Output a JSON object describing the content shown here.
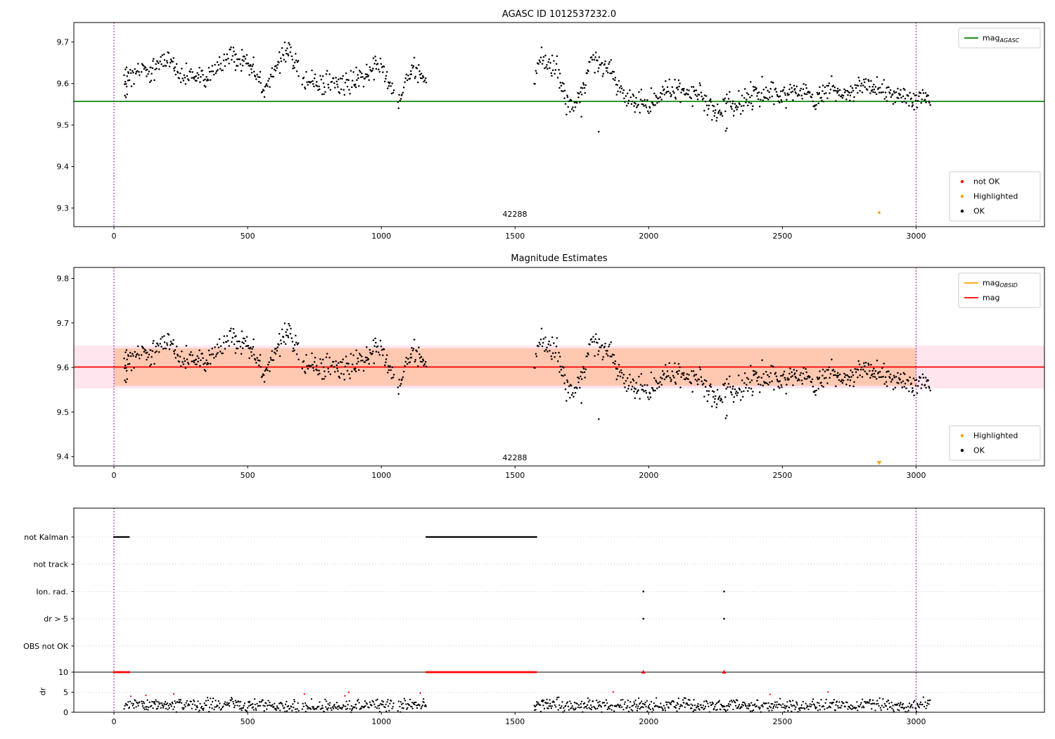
{
  "colors": {
    "black": "#000000",
    "red": "#ff0000",
    "orange": "#ffa500",
    "green": "#007f00",
    "purple": "#8e008e",
    "grid": "#bdbdbd",
    "band_outer": "rgba(255,80,140,0.15)",
    "band_inner": "rgba(255,140,50,0.32)",
    "legend_border": "#cccccc"
  },
  "chart_data": [
    {
      "type": "scatter",
      "title": "AGASC ID 1012537232.0",
      "xlim": [
        -150,
        3480
      ],
      "ylim": [
        9.2553,
        9.747
      ],
      "xticks": [
        0,
        500,
        1000,
        1500,
        2000,
        2500,
        3000
      ],
      "yticks": [
        9.7,
        9.6,
        9.5,
        9.4,
        9.3
      ],
      "hlines": [
        {
          "name": "mag-agasc",
          "y": 9.557,
          "color": "green"
        }
      ],
      "vlines": [
        0,
        3000
      ],
      "annotation": {
        "text": "42288",
        "x": 1500
      },
      "legend_upper": [
        {
          "type": "line",
          "color": "green",
          "text": "mag",
          "sub": "AGASC"
        }
      ],
      "legend_lower": [
        {
          "type": "dot",
          "color": "red",
          "text": "not OK"
        },
        {
          "type": "dot",
          "color": "orange",
          "text": "Highlighted"
        },
        {
          "type": "dot",
          "color": "black",
          "text": "OK"
        }
      ],
      "highlighted": [
        {
          "x": 2862,
          "y": 9.289,
          "marker": "dot"
        }
      ],
      "series": {
        "segments": [
          [
            38,
            96
          ],
          [
            103,
            692
          ],
          [
            704,
            1048
          ],
          [
            1062,
            1168
          ],
          [
            1572,
            3055
          ]
        ],
        "step": 2.6,
        "jitter": 0.013,
        "profile": [
          [
            38,
            9.598
          ],
          [
            55,
            9.612
          ],
          [
            75,
            9.628
          ],
          [
            100,
            9.63
          ],
          [
            140,
            9.632
          ],
          [
            175,
            9.645
          ],
          [
            205,
            9.648
          ],
          [
            235,
            9.625
          ],
          [
            265,
            9.615
          ],
          [
            300,
            9.62
          ],
          [
            340,
            9.616
          ],
          [
            380,
            9.627
          ],
          [
            415,
            9.655
          ],
          [
            435,
            9.678
          ],
          [
            455,
            9.663
          ],
          [
            480,
            9.648
          ],
          [
            510,
            9.64
          ],
          [
            540,
            9.612
          ],
          [
            562,
            9.588
          ],
          [
            585,
            9.605
          ],
          [
            610,
            9.65
          ],
          [
            635,
            9.672
          ],
          [
            655,
            9.683
          ],
          [
            672,
            9.662
          ],
          [
            692,
            9.625
          ],
          [
            704,
            9.6
          ],
          [
            735,
            9.612
          ],
          [
            770,
            9.6
          ],
          [
            805,
            9.598
          ],
          [
            840,
            9.594
          ],
          [
            875,
            9.6
          ],
          [
            905,
            9.612
          ],
          [
            935,
            9.622
          ],
          [
            965,
            9.638
          ],
          [
            985,
            9.652
          ],
          [
            1005,
            9.635
          ],
          [
            1025,
            9.607
          ],
          [
            1045,
            9.578
          ],
          [
            1062,
            9.565
          ],
          [
            1080,
            9.582
          ],
          [
            1100,
            9.618
          ],
          [
            1120,
            9.632
          ],
          [
            1145,
            9.616
          ],
          [
            1168,
            9.61
          ],
          [
            1572,
            9.612
          ],
          [
            1592,
            9.645
          ],
          [
            1612,
            9.658
          ],
          [
            1632,
            9.642
          ],
          [
            1652,
            9.648
          ],
          [
            1672,
            9.6
          ],
          [
            1692,
            9.562
          ],
          [
            1712,
            9.545
          ],
          [
            1732,
            9.552
          ],
          [
            1752,
            9.582
          ],
          [
            1772,
            9.622
          ],
          [
            1792,
            9.664
          ],
          [
            1812,
            9.652
          ],
          [
            1832,
            9.642
          ],
          [
            1852,
            9.64
          ],
          [
            1872,
            9.614
          ],
          [
            1892,
            9.585
          ],
          [
            1912,
            9.575
          ],
          [
            1932,
            9.565
          ],
          [
            1952,
            9.556
          ],
          [
            1972,
            9.56
          ],
          [
            1992,
            9.553
          ],
          [
            2012,
            9.558
          ],
          [
            2032,
            9.565
          ],
          [
            2052,
            9.58
          ],
          [
            2072,
            9.59
          ],
          [
            2092,
            9.585
          ],
          [
            2112,
            9.59
          ],
          [
            2132,
            9.58
          ],
          [
            2152,
            9.57
          ],
          [
            2172,
            9.576
          ],
          [
            2192,
            9.565
          ],
          [
            2212,
            9.55
          ],
          [
            2232,
            9.54
          ],
          [
            2252,
            9.522
          ],
          [
            2272,
            9.53
          ],
          [
            2292,
            9.55
          ],
          [
            2312,
            9.56
          ],
          [
            2332,
            9.545
          ],
          [
            2352,
            9.552
          ],
          [
            2372,
            9.565
          ],
          [
            2392,
            9.575
          ],
          [
            2412,
            9.57
          ],
          [
            2432,
            9.576
          ],
          [
            2452,
            9.582
          ],
          [
            2472,
            9.576
          ],
          [
            2492,
            9.57
          ],
          [
            2512,
            9.576
          ],
          [
            2532,
            9.582
          ],
          [
            2552,
            9.576
          ],
          [
            2572,
            9.582
          ],
          [
            2592,
            9.576
          ],
          [
            2612,
            9.562
          ],
          [
            2632,
            9.566
          ],
          [
            2652,
            9.586
          ],
          [
            2672,
            9.596
          ],
          [
            2692,
            9.59
          ],
          [
            2712,
            9.585
          ],
          [
            2732,
            9.576
          ],
          [
            2752,
            9.57
          ],
          [
            2772,
            9.582
          ],
          [
            2792,
            9.592
          ],
          [
            2812,
            9.6
          ],
          [
            2832,
            9.59
          ],
          [
            2852,
            9.582
          ],
          [
            2872,
            9.586
          ],
          [
            2892,
            9.576
          ],
          [
            2912,
            9.57
          ],
          [
            2932,
            9.576
          ],
          [
            2952,
            9.57
          ],
          [
            2972,
            9.565
          ],
          [
            2992,
            9.56
          ],
          [
            3012,
            9.566
          ],
          [
            3032,
            9.57
          ],
          [
            3055,
            9.565
          ]
        ],
        "extra_points": [
          [
            41,
            9.571
          ],
          [
            45,
            9.567
          ],
          [
            49,
            9.574
          ],
          [
            43,
            9.634
          ],
          [
            47,
            9.639
          ],
          [
            53,
            9.628
          ],
          [
            1813,
            9.484
          ],
          [
            2288,
            9.486
          ],
          [
            2292,
            9.492
          ]
        ]
      }
    },
    {
      "type": "scatter",
      "title": "Magnitude Estimates",
      "xlim": [
        -150,
        3480
      ],
      "ylim": [
        9.379,
        9.8245
      ],
      "xticks": [
        0,
        500,
        1000,
        1500,
        2000,
        2500,
        3000
      ],
      "yticks": [
        9.8,
        9.7,
        9.6,
        9.5,
        9.4
      ],
      "hlines": [
        {
          "name": "mag",
          "y": 9.601,
          "color": "red"
        }
      ],
      "bands": [
        {
          "x0": -150,
          "x1": 3480,
          "y0": 9.553,
          "y1": 9.649,
          "color": "band_outer"
        },
        {
          "x0": 0,
          "x1": 3000,
          "y0": 9.559,
          "y1": 9.643,
          "color": "band_inner"
        }
      ],
      "vlines": [
        0,
        3000
      ],
      "annotation": {
        "text": "42288",
        "x": 1500
      },
      "legend_upper": [
        {
          "type": "line",
          "color": "orange",
          "text": "mag",
          "sub": "OBSID"
        },
        {
          "type": "line",
          "color": "red",
          "text": "mag",
          "sub": ""
        }
      ],
      "legend_lower": [
        {
          "type": "dot",
          "color": "orange",
          "text": "Highlighted"
        },
        {
          "type": "dot",
          "color": "black",
          "text": "OK"
        }
      ],
      "highlighted": [
        {
          "x": 2862,
          "y": 9.386,
          "marker": "triangle-down"
        }
      ]
    },
    {
      "type": "flags",
      "categories": [
        "not Kalman",
        "not track",
        "Ion. rad.",
        "dr > 5",
        "OBS not OK"
      ],
      "dr_ticks": [
        10,
        5,
        0
      ],
      "ylabel": "dr",
      "xlim": [
        -150,
        3480
      ],
      "xticks": [
        0,
        500,
        1000,
        1500,
        2000,
        2500,
        3000
      ],
      "vlines": [
        0,
        3000
      ],
      "clip_line_dr": 10,
      "flag_runs": {
        "not_kalman": [
          [
            0,
            57
          ],
          [
            1168,
            1580
          ]
        ]
      },
      "flag_points": {
        "ion_rad": [
          1980,
          2282
        ],
        "dr_gt5": [
          1980,
          2282
        ]
      },
      "dr_clip_runs": [
        [
          0,
          57
        ],
        [
          1168,
          1580
        ]
      ],
      "dr_clip_markers": [
        1980,
        2282
      ],
      "dr_series": {
        "jitter": 0.8,
        "spike_prob": 0.013,
        "max": 5.2,
        "red_threshold": 3.9,
        "profile": [
          [
            38,
            1.8
          ],
          [
            120,
            2.1
          ],
          [
            200,
            1.5
          ],
          [
            300,
            1.4
          ],
          [
            380,
            1.8
          ],
          [
            430,
            2.4
          ],
          [
            500,
            1.6
          ],
          [
            560,
            2.1
          ],
          [
            640,
            1.5
          ],
          [
            700,
            1.3
          ],
          [
            780,
            1.5
          ],
          [
            850,
            1.7
          ],
          [
            920,
            1.4
          ],
          [
            980,
            1.9
          ],
          [
            1050,
            1.5
          ],
          [
            1120,
            1.8
          ],
          [
            1168,
            1.6
          ],
          [
            1572,
            1.7
          ],
          [
            1650,
            2.0
          ],
          [
            1720,
            1.4
          ],
          [
            1800,
            2.1
          ],
          [
            1880,
            1.5
          ],
          [
            1960,
            1.7
          ],
          [
            2040,
            1.4
          ],
          [
            2120,
            1.8
          ],
          [
            2200,
            1.5
          ],
          [
            2280,
            1.6
          ],
          [
            2360,
            1.8
          ],
          [
            2440,
            1.5
          ],
          [
            2520,
            1.7
          ],
          [
            2600,
            1.4
          ],
          [
            2680,
            1.9
          ],
          [
            2760,
            1.6
          ],
          [
            2840,
            1.8
          ],
          [
            2920,
            1.5
          ],
          [
            3000,
            1.8
          ],
          [
            3055,
            2.2
          ]
        ]
      }
    }
  ]
}
